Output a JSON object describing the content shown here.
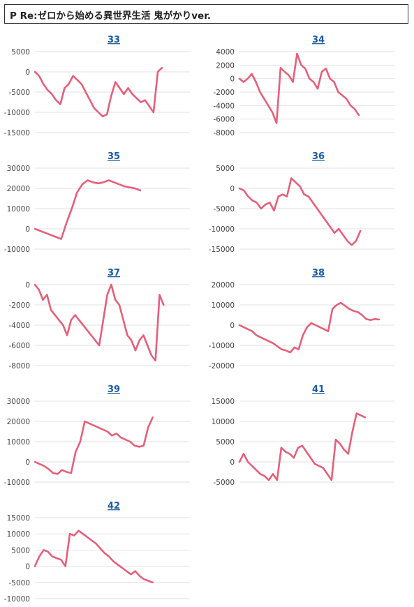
{
  "header": {
    "title": "P Re:ゼロから始める異世界生活 鬼がかりver."
  },
  "colors": {
    "line": "#e4607a",
    "title_link": "#1a5aa0",
    "grid": "#e2e2e2"
  },
  "chart_data": [
    {
      "type": "line",
      "title": "33",
      "ylim": [
        -15000,
        5000
      ],
      "ticks": [
        5000,
        0,
        -5000,
        -10000,
        -15000
      ],
      "grid": true,
      "values": [
        0,
        -1000,
        -3000,
        -4500,
        -5500,
        -7000,
        -8000,
        -4000,
        -3000,
        -1000,
        -2000,
        -3000,
        -5000,
        -7000,
        -9000,
        -10000,
        -11000,
        -10500,
        -6000,
        -2500,
        -4000,
        -5500,
        -4000,
        -5500,
        -6500,
        -7500,
        -7000,
        -8500,
        -10000,
        0,
        1000
      ]
    },
    {
      "type": "line",
      "title": "34",
      "ylim": [
        -8000,
        4000
      ],
      "ticks": [
        4000,
        2000,
        0,
        -2000,
        -4000,
        -6000,
        -8000
      ],
      "grid": true,
      "values": [
        0,
        -500,
        0,
        700,
        -500,
        -2000,
        -3000,
        -4000,
        -5000,
        -6600,
        1600,
        1000,
        500,
        -500,
        3700,
        2000,
        1500,
        0,
        -500,
        -1500,
        1000,
        1500,
        0,
        -500,
        -2000,
        -2500,
        -3000,
        -4000,
        -4500,
        -5400
      ]
    },
    {
      "type": "line",
      "title": "35",
      "ylim": [
        -10000,
        30000
      ],
      "ticks": [
        30000,
        20000,
        10000,
        0,
        -10000
      ],
      "grid": true,
      "values": [
        0,
        -1000,
        -2000,
        -3000,
        -4000,
        -5000,
        3000,
        10000,
        18000,
        22000,
        24000,
        23000,
        22500,
        23000,
        24000,
        23000,
        22000,
        21000,
        20500,
        20000,
        19000
      ]
    },
    {
      "type": "line",
      "title": "36",
      "ylim": [
        -15000,
        5000
      ],
      "ticks": [
        5000,
        0,
        -5000,
        -10000,
        -15000
      ],
      "grid": true,
      "values": [
        0,
        -500,
        -2000,
        -3000,
        -3500,
        -5000,
        -4000,
        -3500,
        -5500,
        -2000,
        -1500,
        -2000,
        2500,
        1500,
        500,
        -1500,
        -2000,
        -3500,
        -5000,
        -6500,
        -8000,
        -9500,
        -11000,
        -10000,
        -11500,
        -13000,
        -14000,
        -13000,
        -10500
      ]
    },
    {
      "type": "line",
      "title": "37",
      "ylim": [
        -8000,
        0
      ],
      "ticks": [
        0,
        -2000,
        -4000,
        -6000,
        -8000
      ],
      "grid": true,
      "values": [
        0,
        -500,
        -1500,
        -1000,
        -2500,
        -3000,
        -3500,
        -4000,
        -5000,
        -3500,
        -3000,
        -3500,
        -4000,
        -4500,
        -5000,
        -5500,
        -6000,
        -3500,
        -1000,
        0,
        -1500,
        -2000,
        -3500,
        -5000,
        -5500,
        -6500,
        -5500,
        -5000,
        -6000,
        -7000,
        -7500,
        -1000,
        -2000
      ]
    },
    {
      "type": "line",
      "title": "38",
      "ylim": [
        -20000,
        20000
      ],
      "ticks": [
        20000,
        10000,
        0,
        -10000,
        -20000
      ],
      "grid": true,
      "values": [
        0,
        -1000,
        -2000,
        -3000,
        -5000,
        -6000,
        -7000,
        -8000,
        -9000,
        -10500,
        -12000,
        -12500,
        -13500,
        -11000,
        -12000,
        -5000,
        -1000,
        1000,
        0,
        -1000,
        -2000,
        -3000,
        8000,
        10000,
        11000,
        9500,
        8000,
        7000,
        6500,
        5000,
        3000,
        2500,
        3000,
        2800
      ]
    },
    {
      "type": "line",
      "title": "39",
      "ylim": [
        -10000,
        30000
      ],
      "ticks": [
        30000,
        20000,
        10000,
        0,
        -10000
      ],
      "grid": true,
      "values": [
        0,
        -1000,
        -2000,
        -3500,
        -5500,
        -6000,
        -4000,
        -5000,
        -5500,
        5000,
        10000,
        20000,
        19000,
        18000,
        17000,
        16000,
        15000,
        13000,
        14000,
        12000,
        11000,
        10000,
        8000,
        7500,
        8000,
        17000,
        22000
      ]
    },
    {
      "type": "line",
      "title": "41",
      "ylim": [
        -5000,
        15000
      ],
      "ticks": [
        15000,
        10000,
        5000,
        0,
        -5000
      ],
      "grid": true,
      "values": [
        0,
        2000,
        0,
        -1000,
        -2000,
        -3000,
        -3500,
        -4500,
        -3000,
        -4500,
        3500,
        2500,
        2000,
        1000,
        3500,
        4000,
        2500,
        1000,
        -500,
        -1000,
        -1500,
        -3000,
        -4500,
        5500,
        4500,
        3000,
        2000,
        7500,
        12000,
        11500,
        11000
      ]
    },
    {
      "type": "line",
      "title": "42",
      "ylim": [
        -10000,
        15000
      ],
      "ticks": [
        15000,
        10000,
        5000,
        0,
        -5000,
        -10000
      ],
      "grid": true,
      "values": [
        0,
        3000,
        5000,
        4500,
        3000,
        2500,
        2000,
        0,
        10000,
        9500,
        11000,
        10000,
        9000,
        8000,
        7000,
        5500,
        4000,
        3000,
        1500,
        500,
        -500,
        -1500,
        -2500,
        -1500,
        -3000,
        -4000,
        -4500,
        -5000
      ]
    }
  ]
}
